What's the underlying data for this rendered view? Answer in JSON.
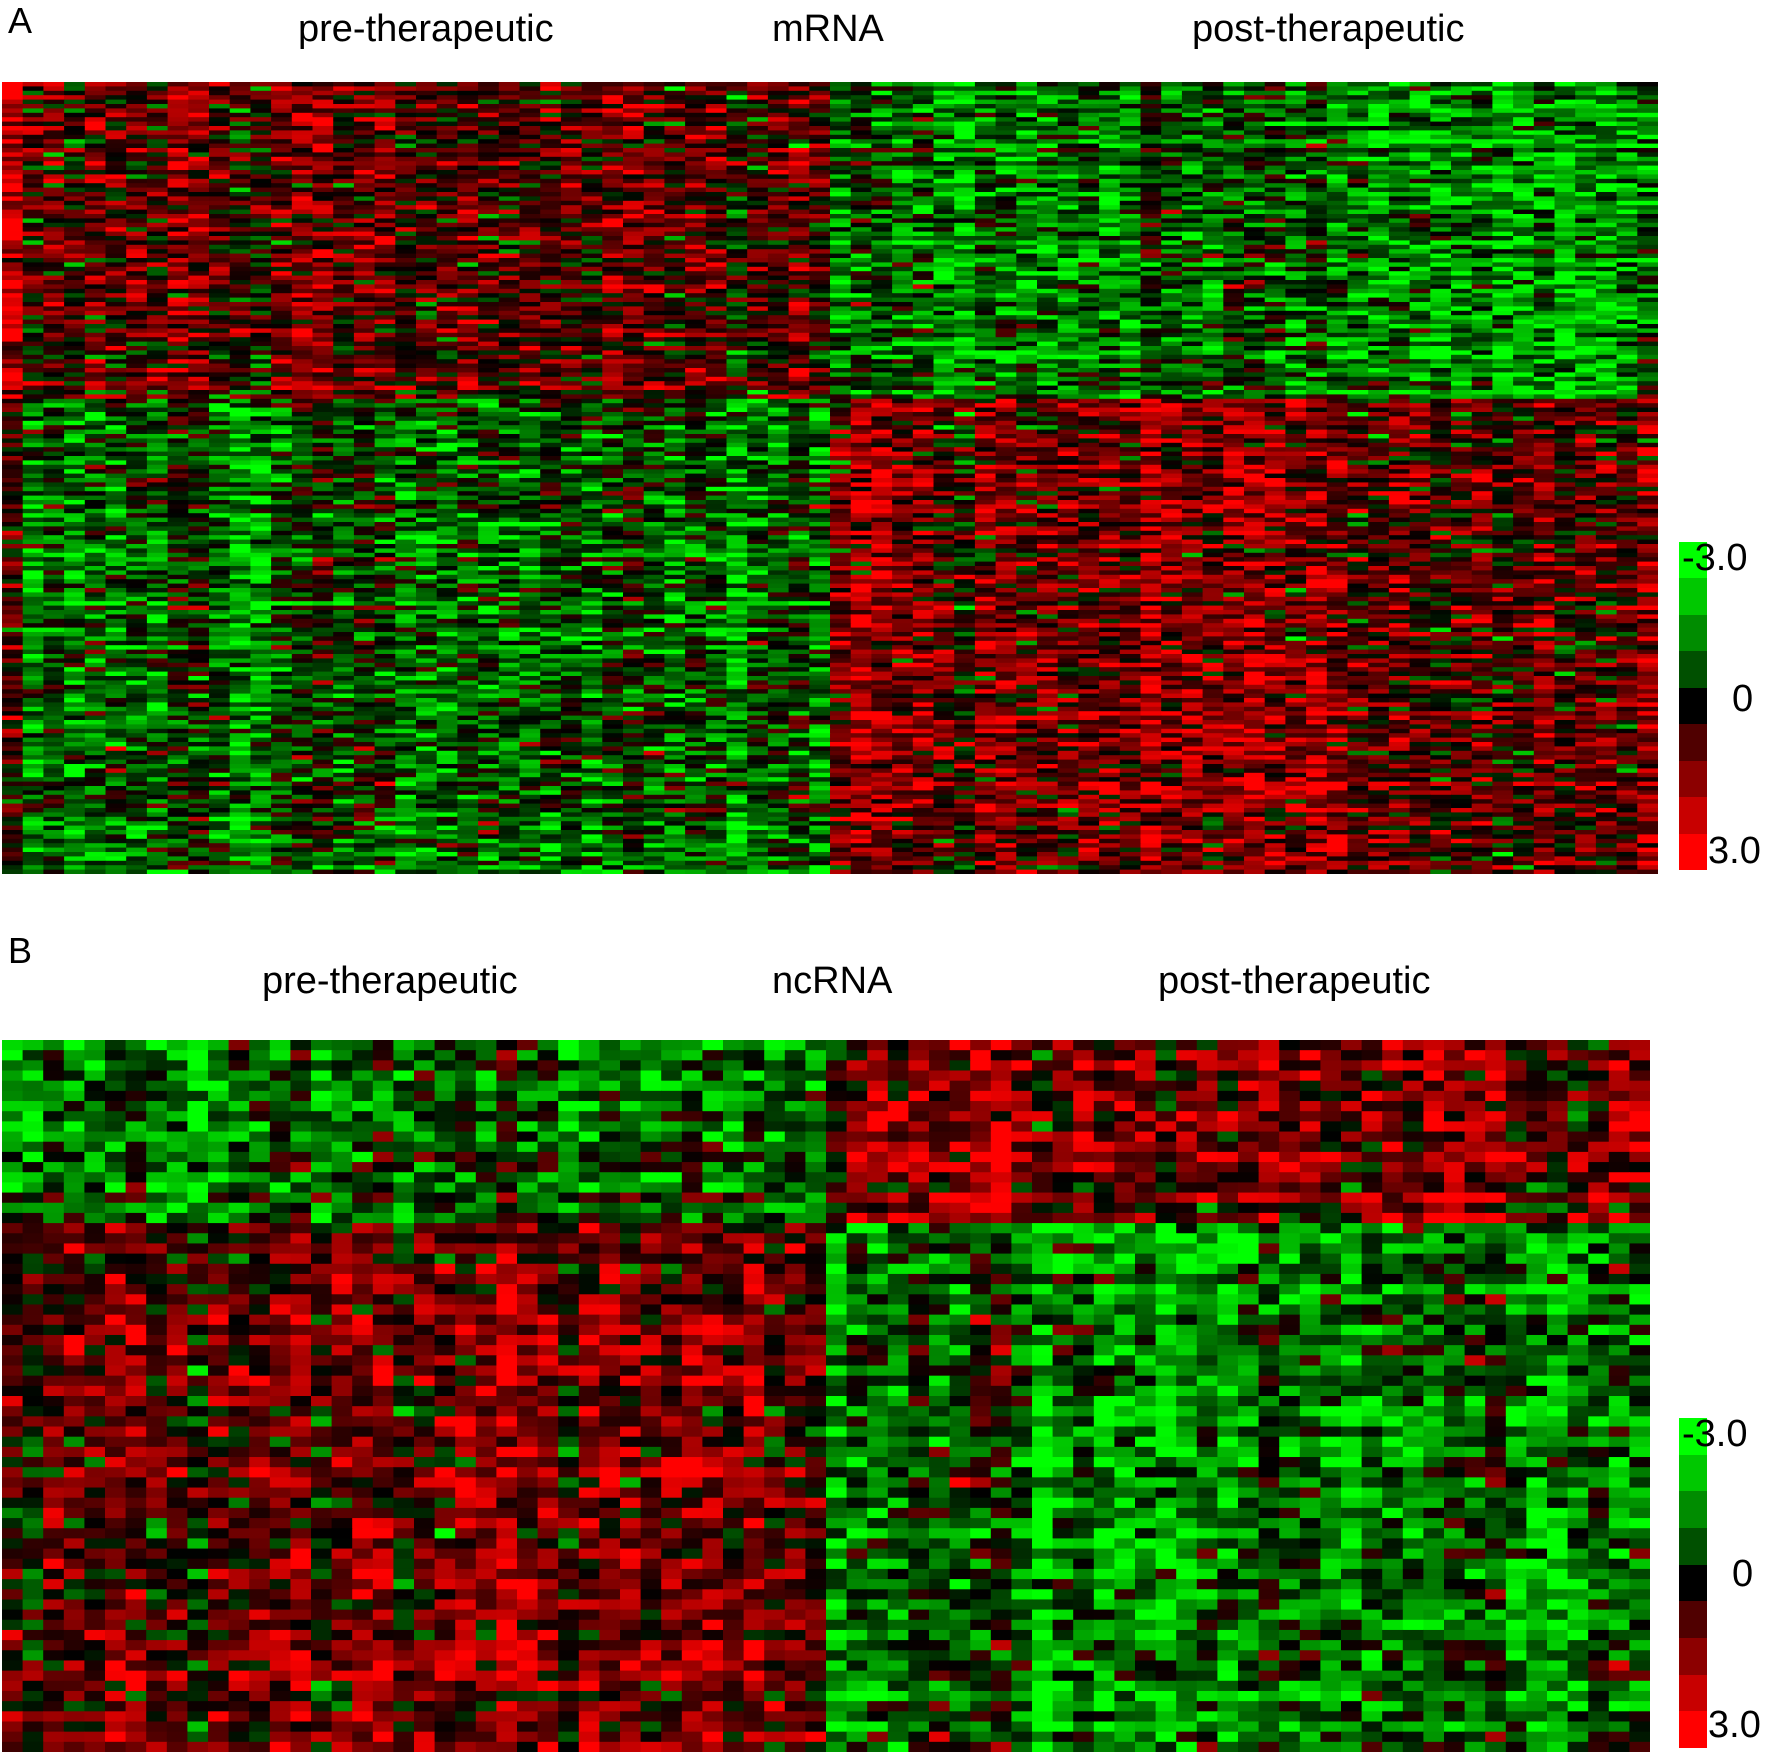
{
  "chart_data": [
    {
      "type": "heatmap",
      "panel_label": "A",
      "group_labels": [
        "pre-therapeutic",
        "mRNA",
        "post-therapeutic"
      ],
      "n_columns": 80,
      "n_rows": 180,
      "columns_left_group": 40,
      "color_scale": {
        "min": -3.0,
        "mid": 0,
        "max": 3.0,
        "labels": [
          "-3.0",
          "0",
          "3.0"
        ],
        "colors": [
          "#00ff00",
          "#00c800",
          "#008c00",
          "#005000",
          "#000000",
          "#500000",
          "#8c0000",
          "#c80000",
          "#ff0000"
        ]
      },
      "block_pattern": [
        {
          "rows": [
            0,
            0.4
          ],
          "left_mean": 0.8,
          "right_mean": -1.3
        },
        {
          "rows": [
            0.4,
            1.0
          ],
          "left_mean": -1.0,
          "right_mean": 1.2
        }
      ]
    },
    {
      "type": "heatmap",
      "panel_label": "B",
      "group_labels": [
        "pre-therapeutic",
        "ncRNA",
        "post-therapeutic"
      ],
      "n_columns": 80,
      "n_rows": 70,
      "columns_left_group": 40,
      "color_scale": {
        "min": -3.0,
        "mid": 0,
        "max": 3.0,
        "labels": [
          "-3.0",
          "0",
          "3.0"
        ],
        "colors": [
          "#00ff00",
          "#00c800",
          "#008c00",
          "#005000",
          "#000000",
          "#500000",
          "#8c0000",
          "#c80000",
          "#ff0000"
        ]
      },
      "block_pattern": [
        {
          "rows": [
            0,
            0.25
          ],
          "left_mean": -1.3,
          "right_mean": 1.2
        },
        {
          "rows": [
            0.25,
            1.0
          ],
          "left_mean": 1.1,
          "right_mean": -1.1
        }
      ]
    }
  ]
}
